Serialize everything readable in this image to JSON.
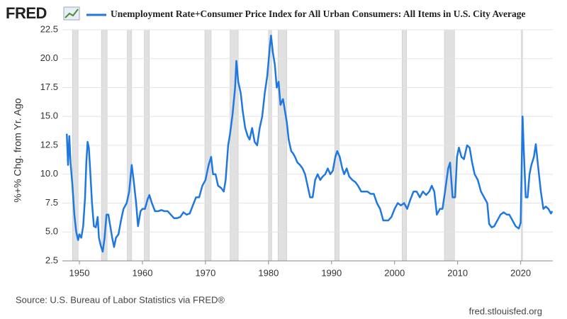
{
  "logo": "FRED",
  "chart_data": {
    "type": "line",
    "title": "Unemployment Rate+Consumer Price Index for All Urban Consumers: All Items in U.S. City Average",
    "y_label": "%+% Chg. from Yr. Ago",
    "source": "Source: U.S. Bureau of Labor Statistics via FRED®",
    "url": "fred.stlouisfed.org",
    "xlim": [
      1947.3,
      2025.1
    ],
    "xticks": [
      1950,
      1960,
      1970,
      1980,
      1990,
      2000,
      2010,
      2020
    ],
    "ylim": [
      2.5,
      22.5
    ],
    "yticks": [
      {
        "value": 2.5,
        "label": "2.5"
      },
      {
        "value": 5,
        "label": "5.0"
      },
      {
        "value": 7.5,
        "label": "7.5"
      },
      {
        "value": 10,
        "label": "10.0"
      },
      {
        "value": 12.5,
        "label": "12.5"
      },
      {
        "value": 15,
        "label": "15.0"
      },
      {
        "value": 17.5,
        "label": "17.5"
      },
      {
        "value": 20,
        "label": "20.0"
      },
      {
        "value": 22.5,
        "label": "22.5"
      }
    ],
    "grid": true,
    "shaded_regions": [
      [
        1948.9,
        1949.8
      ],
      [
        1953.5,
        1954.4
      ],
      [
        1957.6,
        1958.3
      ],
      [
        1960.3,
        1961.1
      ],
      [
        1969.9,
        1970.9
      ],
      [
        1973.9,
        1975.2
      ],
      [
        1980.0,
        1980.5
      ],
      [
        1981.5,
        1982.9
      ],
      [
        1990.5,
        1991.2
      ],
      [
        2001.2,
        2001.9
      ],
      [
        2007.9,
        2009.5
      ],
      [
        2020.1,
        2020.3
      ]
    ],
    "x": [
      1948.0,
      1948.2,
      1948.4,
      1948.6,
      1948.9,
      1949.2,
      1949.5,
      1949.8,
      1950.0,
      1950.3,
      1950.6,
      1950.9,
      1951.1,
      1951.3,
      1951.5,
      1951.8,
      1952.0,
      1952.3,
      1952.6,
      1952.9,
      1953.1,
      1953.4,
      1953.7,
      1954.0,
      1954.3,
      1954.6,
      1954.9,
      1955.2,
      1955.5,
      1955.8,
      1956.2,
      1956.6,
      1957.0,
      1957.5,
      1957.9,
      1958.3,
      1958.6,
      1959.0,
      1959.3,
      1959.7,
      1960.0,
      1960.4,
      1960.8,
      1961.1,
      1961.5,
      1962.0,
      1962.5,
      1963.0,
      1963.5,
      1964.0,
      1964.5,
      1965.0,
      1965.5,
      1966.0,
      1966.5,
      1967.0,
      1967.5,
      1968.0,
      1968.5,
      1969.0,
      1969.5,
      1970.0,
      1970.5,
      1970.9,
      1971.2,
      1971.6,
      1972.0,
      1972.5,
      1972.9,
      1973.2,
      1973.6,
      1973.9,
      1974.3,
      1974.7,
      1974.9,
      1975.2,
      1975.6,
      1975.9,
      1976.3,
      1976.7,
      1977.0,
      1977.4,
      1977.8,
      1978.2,
      1978.6,
      1979.0,
      1979.4,
      1979.8,
      1980.2,
      1980.4,
      1980.7,
      1981.0,
      1981.3,
      1981.6,
      1981.9,
      1982.3,
      1982.6,
      1982.9,
      1983.2,
      1983.6,
      1983.9,
      1984.2,
      1984.6,
      1985.0,
      1985.4,
      1985.8,
      1986.2,
      1986.6,
      1987.0,
      1987.4,
      1987.8,
      1988.2,
      1988.6,
      1989.0,
      1989.4,
      1989.8,
      1990.2,
      1990.6,
      1990.9,
      1991.3,
      1991.7,
      1992.0,
      1992.4,
      1992.8,
      1993.3,
      1993.8,
      1994.2,
      1994.7,
      1995.2,
      1995.7,
      1996.2,
      1996.7,
      1997.2,
      1997.7,
      1998.2,
      1998.6,
      1999.0,
      1999.5,
      2000.0,
      2000.5,
      2001.0,
      2001.5,
      2002.0,
      2002.5,
      2003.0,
      2003.5,
      2004.0,
      2004.5,
      2005.0,
      2005.5,
      2005.9,
      2006.3,
      2006.7,
      2007.2,
      2007.6,
      2008.0,
      2008.5,
      2008.8,
      2009.2,
      2009.6,
      2009.9,
      2010.2,
      2010.6,
      2011.0,
      2011.5,
      2011.9,
      2012.3,
      2012.7,
      2013.2,
      2013.7,
      2014.2,
      2014.7,
      2015.0,
      2015.4,
      2015.8,
      2016.3,
      2016.8,
      2017.3,
      2017.8,
      2018.2,
      2018.7,
      2019.2,
      2019.7,
      2020.0,
      2020.3,
      2020.5,
      2020.8,
      2021.1,
      2021.4,
      2021.7,
      2022.1,
      2022.4,
      2022.8,
      2023.2,
      2023.6,
      2024.0,
      2024.4,
      2024.8,
      2025.0
    ],
    "series": [
      {
        "name": "Unemployment Rate+Consumer Price Index for All Urban Consumers: All Items in U.S. City Average",
        "color": "#1f77e0",
        "values": [
          13.5,
          10.8,
          13.3,
          11,
          9,
          6.5,
          5.0,
          4.3,
          4.8,
          4.5,
          5.5,
          8,
          11,
          12.8,
          12.3,
          9.5,
          7.5,
          5.5,
          5.4,
          6.3,
          4.5,
          3.8,
          3.3,
          4.5,
          6.5,
          6.5,
          5.5,
          4.5,
          3.7,
          4.5,
          4.8,
          6.0,
          7,
          7.5,
          8.5,
          10.8,
          9.5,
          7.5,
          5.5,
          6.8,
          7.0,
          7.0,
          7.8,
          8.2,
          7.5,
          6.8,
          6.8,
          6.9,
          6.8,
          6.8,
          6.5,
          6.2,
          6.2,
          6.3,
          6.7,
          6.5,
          6.6,
          7.3,
          8.0,
          8.0,
          9.0,
          9.5,
          10.8,
          11.5,
          10.0,
          10.0,
          9.0,
          8.8,
          8.5,
          9.5,
          12.5,
          13.5,
          15.2,
          17.5,
          19.8,
          18.0,
          17.0,
          15.5,
          14.0,
          13.3,
          13.0,
          14.0,
          12.8,
          12.5,
          14.0,
          15.0,
          17.0,
          18.5,
          21.0,
          22.0,
          20.5,
          19.5,
          17.5,
          18.0,
          16.0,
          16.5,
          15.5,
          14.5,
          13.0,
          12.0,
          11.8,
          11.5,
          11.0,
          10.8,
          10.5,
          10.0,
          9.0,
          8.0,
          8.0,
          9.5,
          10.0,
          9.5,
          9.8,
          10.0,
          10.5,
          10.0,
          10.3,
          11.5,
          12.0,
          11.5,
          10.5,
          10.0,
          10.5,
          9.8,
          9.5,
          9.3,
          9.0,
          8.5,
          8.5,
          8.5,
          8.3,
          8.3,
          7.5,
          7.0,
          6.0,
          6.0,
          6.0,
          6.3,
          7.0,
          7.5,
          7.3,
          7.5,
          7.0,
          7.8,
          8.5,
          8.5,
          8.0,
          8.5,
          8.2,
          8.5,
          9.0,
          8.5,
          6.5,
          7.0,
          7.0,
          8.5,
          10.5,
          11.0,
          8.0,
          8.0,
          11.5,
          12.3,
          11.5,
          11.3,
          12.5,
          12.3,
          11.0,
          10.0,
          9.5,
          8.5,
          8.0,
          7.5,
          5.7,
          5.4,
          5.5,
          6.0,
          6.5,
          6.7,
          6.5,
          6.5,
          6.0,
          5.5,
          5.3,
          5.8,
          15.0,
          12.0,
          8.0,
          8.0,
          10.0,
          10.8,
          11.5,
          12.6,
          10.5,
          8.5,
          7.0,
          7.2,
          7.0,
          6.6,
          6.8
        ]
      }
    ]
  }
}
